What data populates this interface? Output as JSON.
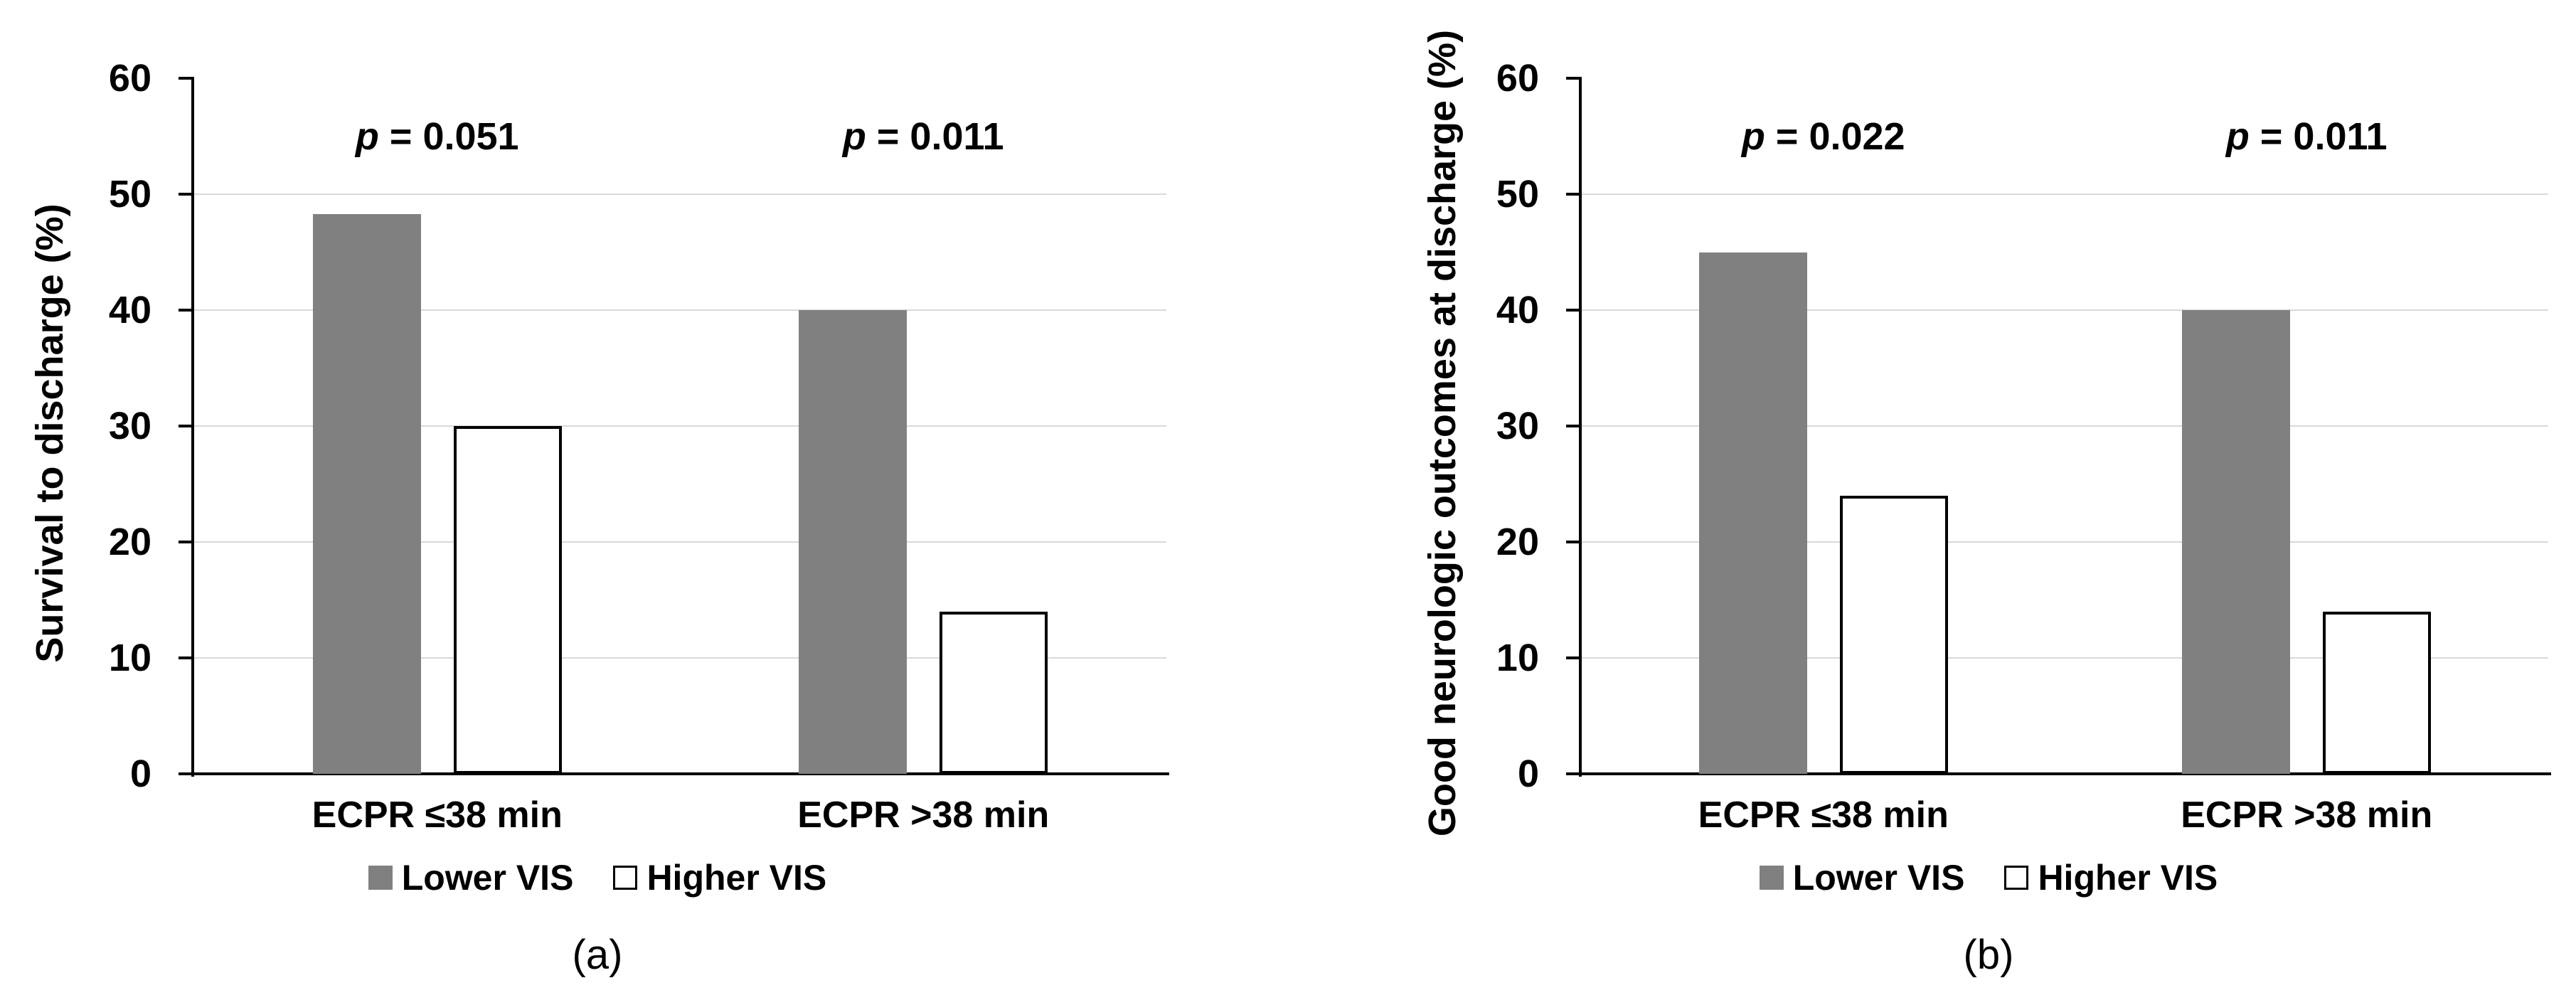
{
  "figure": {
    "background": "#ffffff",
    "colors": {
      "bar_gray_fill": "#808080",
      "bar_white_fill": "#ffffff",
      "bar_stroke": "#000000",
      "gridline": "#d9d9d9",
      "axis": "#000000",
      "text": "#000000"
    }
  },
  "chart_data": [
    {
      "type": "bar",
      "title": "",
      "ylabel": "Survival to discharge (%)",
      "xlabel": "",
      "ylim": [
        0,
        60
      ],
      "ytick_step": 10,
      "y_ticks": [
        "0",
        "10",
        "20",
        "30",
        "40",
        "50",
        "60"
      ],
      "grid": true,
      "legend_position": "bottom",
      "categories": [
        "ECPR ≤38 min",
        "ECPR >38 min"
      ],
      "series": [
        {
          "name": "Lower VIS",
          "style": "gray",
          "values": [
            48.3,
            40
          ]
        },
        {
          "name": "Higher VIS",
          "style": "white",
          "values": [
            30,
            14
          ]
        }
      ],
      "annotations": [
        {
          "label": "p = 0.051",
          "group": 0,
          "y": 55
        },
        {
          "label": "p = 0.011",
          "group": 1,
          "y": 55
        }
      ],
      "caption": "(a)"
    },
    {
      "type": "bar",
      "title": "",
      "ylabel": "Good neurologic outcomes at discharge (%)",
      "xlabel": "",
      "ylim": [
        0,
        60
      ],
      "ytick_step": 10,
      "y_ticks": [
        "0",
        "10",
        "20",
        "30",
        "40",
        "50",
        "60"
      ],
      "grid": true,
      "legend_position": "bottom",
      "categories": [
        "ECPR ≤38 min",
        "ECPR >38 min"
      ],
      "series": [
        {
          "name": "Lower VIS",
          "style": "gray",
          "values": [
            45,
            40
          ]
        },
        {
          "name": "Higher VIS",
          "style": "white",
          "values": [
            24,
            14
          ]
        }
      ],
      "annotations": [
        {
          "label": "p = 0.022",
          "group": 0,
          "y": 55
        },
        {
          "label": "p = 0.011",
          "group": 1,
          "y": 55
        }
      ],
      "caption": "(b)"
    }
  ]
}
